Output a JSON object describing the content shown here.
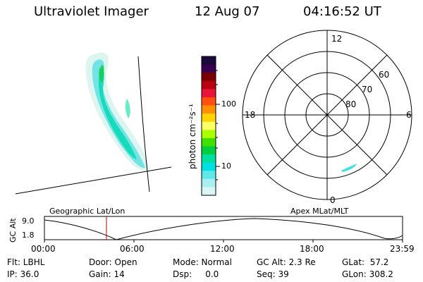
{
  "header": {
    "title": "Ultraviolet Imager",
    "date": "12 Aug 07",
    "time": "04:16:52 UT"
  },
  "colorbar": {
    "unit_label": "photon cm⁻²s⁻¹",
    "ticks": [
      "100",
      "10"
    ],
    "colors": [
      "#1a0a3a",
      "#3a0050",
      "#7a0000",
      "#b80010",
      "#e8143a",
      "#ff5010",
      "#ff9000",
      "#ffd400",
      "#ffff66",
      "#aaff00",
      "#40e000",
      "#00d040",
      "#00e0a0",
      "#00e0e0",
      "#60e8e8",
      "#a8f0f0",
      "#dcf6f6"
    ]
  },
  "polar": {
    "mlt_labels": {
      "top": "12",
      "left": "18",
      "right": "6",
      "bottom": "0"
    },
    "lat_labels": [
      "60",
      "70",
      "80"
    ]
  },
  "timeline": {
    "ylabel": "GC Alt",
    "y_ticks": [
      "9.0",
      "1.8"
    ],
    "left_title": "Geographic Lat/Lon",
    "right_title": "Apex  MLat/MLT",
    "x_ticks": [
      "00:00",
      "06:00",
      "12:00",
      "18:00",
      "23:59"
    ]
  },
  "status": {
    "flt": "Flt: LBHL",
    "ip": "IP: 36.0",
    "door": "Door: Open",
    "gain": "Gain: 14",
    "mode": "Mode: Normal",
    "dsp": "Dsp:     0.0",
    "gcalt": "GC Alt: 2.3 Re",
    "seq": "Seq: 39",
    "glat": "GLat:  57.2",
    "glon": "GLon: 308.2"
  }
}
